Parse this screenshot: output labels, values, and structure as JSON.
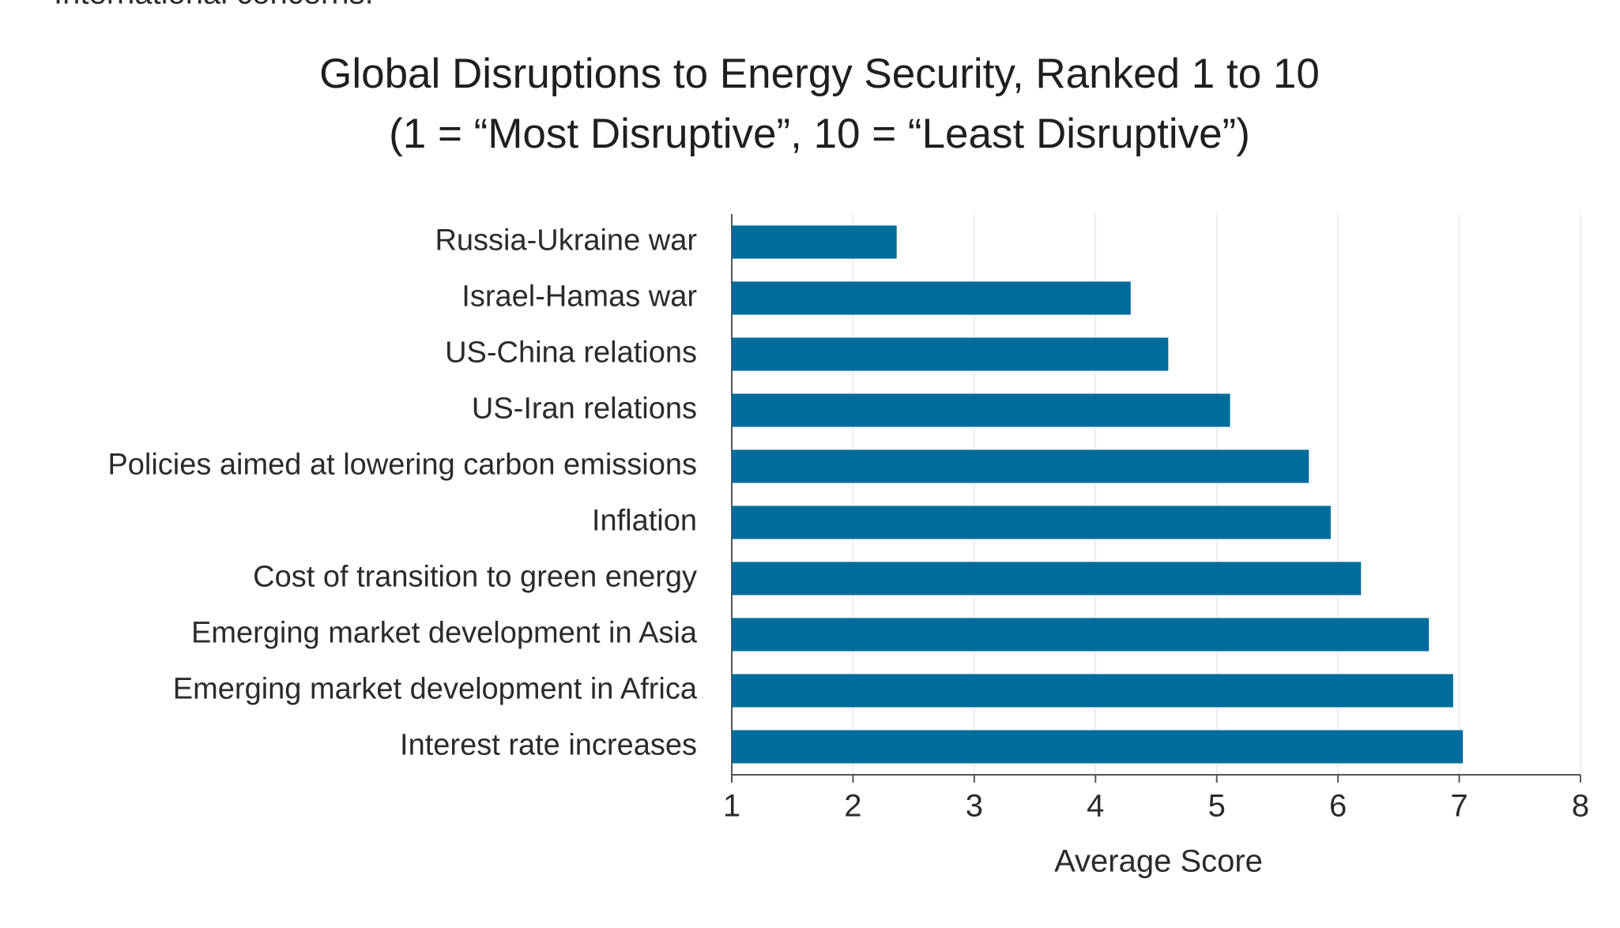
{
  "chart_data": {
    "type": "bar",
    "orientation": "horizontal",
    "header_text": "International concerns.",
    "title": [
      "Global Disruptions to Energy Security, Ranked 1 to 10",
      "(1 = “Most Disruptive”, 10 = “Least Disruptive”)"
    ],
    "categories": [
      "Russia-Ukraine war",
      "Israel-Hamas war",
      "US-China relations",
      "US-Iran relations",
      "Policies aimed at lowering carbon emissions",
      "Inflation",
      "Cost of transition to green energy",
      "Emerging market development in Asia",
      "Emerging market development in Africa",
      "Interest rate increases"
    ],
    "values": [
      2.36,
      4.29,
      4.6,
      5.11,
      5.76,
      5.94,
      6.19,
      6.75,
      6.95,
      7.03
    ],
    "color": "#006c9c",
    "xlabel": "Average Score",
    "xlim": [
      1,
      8
    ],
    "xticks": [
      1,
      2,
      3,
      4,
      5,
      6,
      7,
      8
    ],
    "grid": true
  }
}
